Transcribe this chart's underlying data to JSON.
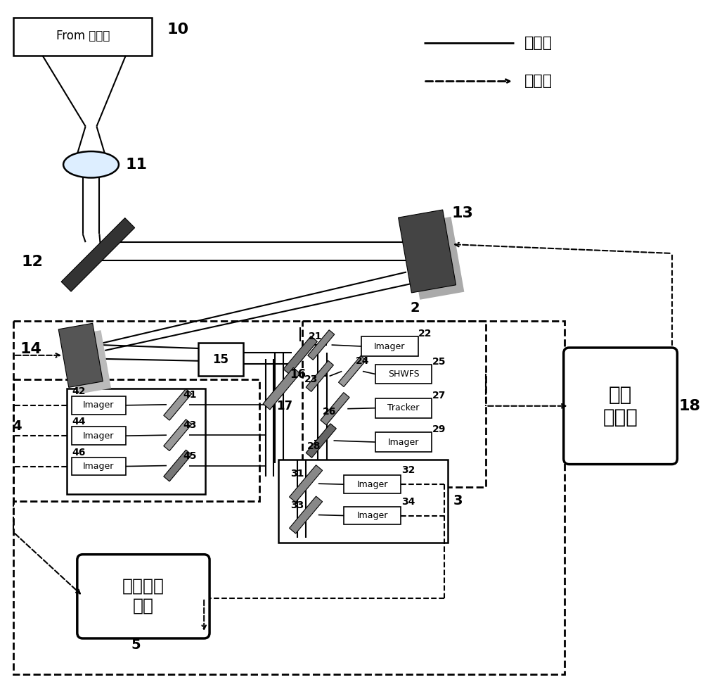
{
  "bg_color": "#ffffff",
  "legend_solid_label": "光信号",
  "legend_dashed_label": "电信号",
  "telescope_label": "From 望远镜",
  "wavefront_controller_label": "波前\n控制器",
  "data_recorder_label": "数据记录\n系统",
  "figw": 10.0,
  "figh": 9.86,
  "dpi": 100
}
